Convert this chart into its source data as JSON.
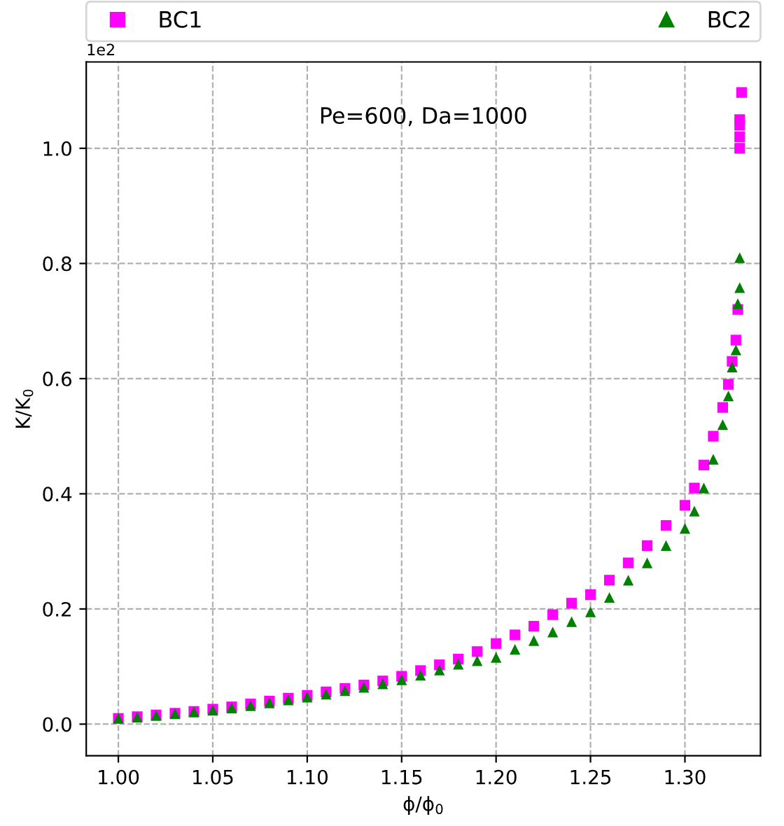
{
  "chart_data": {
    "type": "scatter",
    "xlabel": "ϕ/ϕ$_{0}$",
    "ylabel": "K/K$_{0}$",
    "annotations": [
      "Pe=600, Da=1000",
      "1e2"
    ],
    "xlim": [
      0.983,
      1.34
    ],
    "ylim": [
      -0.055,
      1.15
    ],
    "xticks": [
      {
        "value": 1.0,
        "label": "1.00"
      },
      {
        "value": 1.05,
        "label": "1.05"
      },
      {
        "value": 1.1,
        "label": "1.10"
      },
      {
        "value": 1.15,
        "label": "1.15"
      },
      {
        "value": 1.2,
        "label": "1.20"
      },
      {
        "value": 1.25,
        "label": "1.25"
      },
      {
        "value": 1.3,
        "label": "1.30"
      }
    ],
    "yticks": [
      {
        "value": 0,
        "label": "0.0"
      },
      0.2,
      0.4,
      0.6,
      0.8,
      {
        "value": 1,
        "label": "1.0"
      }
    ],
    "grid": true,
    "legend": "top",
    "series": [
      {
        "name": "BC1",
        "color": "#ff00ff",
        "marker": "square",
        "x": [
          1.0,
          1.01,
          1.02,
          1.03,
          1.04,
          1.05,
          1.06,
          1.07,
          1.08,
          1.09,
          1.1,
          1.11,
          1.12,
          1.13,
          1.14,
          1.15,
          1.16,
          1.17,
          1.18,
          1.19,
          1.2,
          1.21,
          1.22,
          1.23,
          1.24,
          1.25,
          1.26,
          1.27,
          1.28,
          1.29,
          1.3,
          1.305,
          1.31,
          1.315,
          1.32,
          1.323,
          1.325,
          1.327,
          1.328,
          1.329,
          1.329,
          1.329,
          1.329,
          1.33
        ],
        "values": [
          0.01,
          0.013,
          0.016,
          0.019,
          0.022,
          0.026,
          0.03,
          0.035,
          0.04,
          0.045,
          0.05,
          0.056,
          0.062,
          0.068,
          0.075,
          0.083,
          0.093,
          0.103,
          0.113,
          0.126,
          0.14,
          0.155,
          0.17,
          0.19,
          0.21,
          0.225,
          0.25,
          0.28,
          0.31,
          0.345,
          0.38,
          0.41,
          0.45,
          0.5,
          0.55,
          0.59,
          0.63,
          0.667,
          0.72,
          1.0,
          1.02,
          1.04,
          1.05,
          1.097
        ]
      },
      {
        "name": "BC2",
        "color": "#008000",
        "marker": "triangle",
        "x": [
          1.0,
          1.01,
          1.02,
          1.03,
          1.04,
          1.05,
          1.06,
          1.07,
          1.08,
          1.09,
          1.1,
          1.11,
          1.12,
          1.13,
          1.14,
          1.15,
          1.16,
          1.17,
          1.18,
          1.19,
          1.2,
          1.21,
          1.22,
          1.23,
          1.24,
          1.25,
          1.26,
          1.27,
          1.28,
          1.29,
          1.3,
          1.305,
          1.31,
          1.315,
          1.32,
          1.323,
          1.325,
          1.327,
          1.328,
          1.329,
          1.329
        ],
        "values": [
          0.01,
          0.012,
          0.015,
          0.018,
          0.021,
          0.024,
          0.028,
          0.032,
          0.037,
          0.042,
          0.047,
          0.052,
          0.058,
          0.064,
          0.07,
          0.077,
          0.085,
          0.094,
          0.104,
          0.11,
          0.116,
          0.13,
          0.145,
          0.16,
          0.178,
          0.195,
          0.22,
          0.25,
          0.28,
          0.31,
          0.34,
          0.37,
          0.41,
          0.46,
          0.52,
          0.57,
          0.62,
          0.65,
          0.73,
          0.758,
          0.81
        ]
      }
    ]
  }
}
